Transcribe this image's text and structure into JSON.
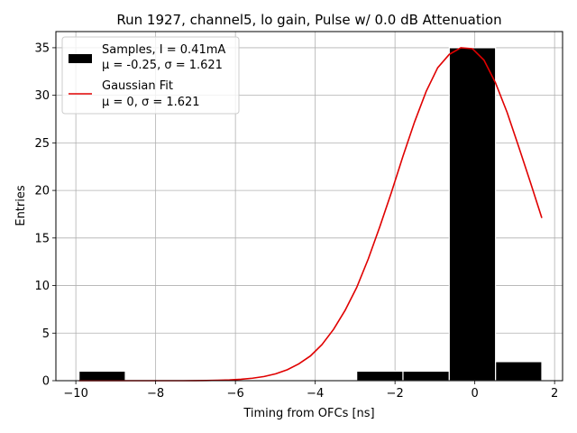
{
  "chart_data": {
    "type": "bar",
    "title": "Run 1927, channel5, lo gain, Pulse w/ 0.0 dB Attenuation",
    "xlabel": "Timing from OFCs [ns]",
    "ylabel": "Entries",
    "xlim": [
      -10.5,
      2.2
    ],
    "ylim": [
      0,
      36.7
    ],
    "xticks": [
      -10,
      -8,
      -6,
      -4,
      -2,
      0,
      2
    ],
    "yticks": [
      0,
      5,
      10,
      15,
      20,
      25,
      30,
      35
    ],
    "grid": true,
    "legend_position": "top-left",
    "histogram": {
      "name": "Samples, I = 0.41mA",
      "stats": "μ = -0.25, σ = 1.621",
      "color": "#000000",
      "bin_edges": [
        -9.92,
        -8.76,
        -7.6,
        -6.44,
        -5.28,
        -4.12,
        -2.96,
        -1.8,
        -0.64,
        0.52,
        1.68
      ],
      "counts": [
        1,
        0,
        0,
        0,
        0,
        0,
        1,
        1,
        35,
        2
      ]
    },
    "fit": {
      "name": "Gaussian Fit",
      "stats": "μ = 0, σ = 1.621",
      "color": "#e00000",
      "x": [
        -9.92,
        -9.63,
        -9.34,
        -9.05,
        -8.76,
        -8.47,
        -8.18,
        -7.89,
        -7.6,
        -7.31,
        -7.02,
        -6.73,
        -6.44,
        -6.15,
        -5.86,
        -5.57,
        -5.28,
        -4.99,
        -4.7,
        -4.41,
        -4.12,
        -3.83,
        -3.54,
        -3.25,
        -2.96,
        -2.67,
        -2.38,
        -2.09,
        -1.8,
        -1.51,
        -1.22,
        -0.93,
        -0.64,
        -0.35,
        -0.06,
        0.23,
        0.52,
        0.81,
        1.1,
        1.39,
        1.68
      ],
      "y": [
        0,
        0,
        0,
        0,
        0,
        0,
        0,
        0,
        0,
        0,
        0.01,
        0.02,
        0.04,
        0.08,
        0.15,
        0.26,
        0.44,
        0.72,
        1.15,
        1.77,
        2.6,
        3.8,
        5.4,
        7.4,
        9.8,
        12.8,
        16.2,
        19.8,
        23.6,
        27.2,
        30.4,
        32.9,
        34.3,
        35.0,
        34.9,
        33.7,
        31.3,
        28.2,
        24.6,
        20.9,
        17.1
      ]
    }
  }
}
